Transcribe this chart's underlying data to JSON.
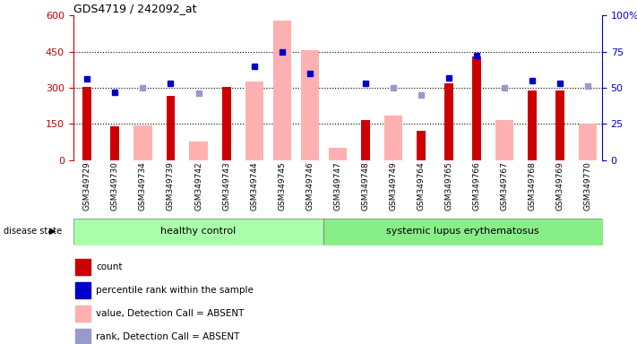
{
  "title": "GDS4719 / 242092_at",
  "samples": [
    "GSM349729",
    "GSM349730",
    "GSM349734",
    "GSM349739",
    "GSM349742",
    "GSM349743",
    "GSM349744",
    "GSM349745",
    "GSM349746",
    "GSM349747",
    "GSM349748",
    "GSM349749",
    "GSM349764",
    "GSM349765",
    "GSM349766",
    "GSM349767",
    "GSM349768",
    "GSM349769",
    "GSM349770"
  ],
  "count": [
    305,
    140,
    null,
    265,
    null,
    305,
    null,
    null,
    null,
    null,
    165,
    null,
    120,
    320,
    430,
    null,
    290,
    290,
    null
  ],
  "absent_value": [
    null,
    null,
    145,
    null,
    75,
    null,
    325,
    580,
    455,
    50,
    null,
    185,
    null,
    null,
    null,
    165,
    null,
    null,
    150
  ],
  "percentile_rank": [
    56,
    47,
    null,
    53,
    null,
    null,
    65,
    75,
    60,
    null,
    53,
    null,
    null,
    57,
    72,
    null,
    55,
    53,
    null
  ],
  "absent_rank": [
    null,
    null,
    50,
    null,
    46,
    null,
    null,
    null,
    null,
    null,
    null,
    50,
    45,
    null,
    null,
    50,
    null,
    null,
    51
  ],
  "healthy_control": [
    0,
    8
  ],
  "sle": [
    9,
    18
  ],
  "ylim_left": [
    0,
    600
  ],
  "ylim_right": [
    0,
    100
  ],
  "yticks_left": [
    0,
    150,
    300,
    450,
    600
  ],
  "yticks_right": [
    0,
    25,
    50,
    75,
    100
  ],
  "gridlines": [
    150,
    300,
    450
  ],
  "bar_color_count": "#cc0000",
  "bar_color_absent": "#ffb0b0",
  "marker_color_rank": "#0000cc",
  "marker_color_absent_rank": "#9999cc",
  "bg_color": "#d8d8d8",
  "healthy_color": "#aaffaa",
  "sle_color": "#88ee88",
  "legend_items": [
    "count",
    "percentile rank within the sample",
    "value, Detection Call = ABSENT",
    "rank, Detection Call = ABSENT"
  ]
}
